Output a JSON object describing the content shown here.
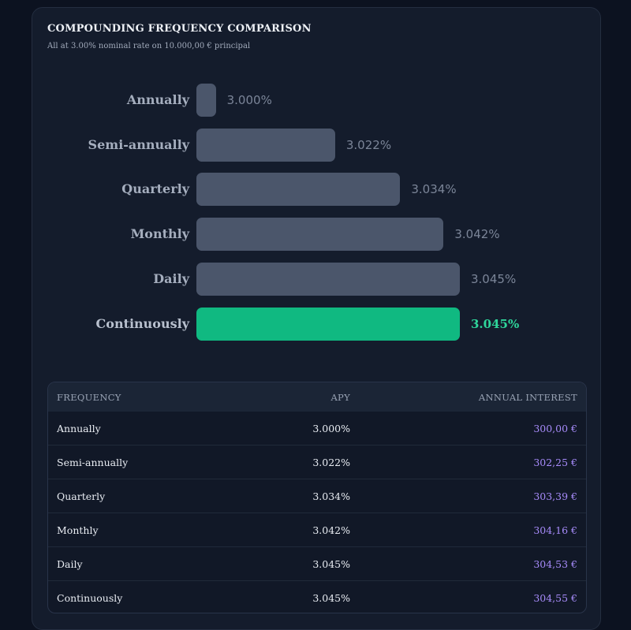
{
  "header": {
    "title": "COMPOUNDING FREQUENCY COMPARISON",
    "subtitle": "All at 3.00% nominal rate on 10.000,00 € principal"
  },
  "chart_data": {
    "type": "bar",
    "orientation": "horizontal",
    "title": "COMPOUNDING FREQUENCY COMPARISON",
    "subtitle": "All at 3.00% nominal rate on 10.000,00 € principal",
    "categories": [
      "Annually",
      "Semi-annually",
      "Quarterly",
      "Monthly",
      "Daily",
      "Continuously"
    ],
    "values": [
      3.0,
      3.022,
      3.034,
      3.042,
      3.045,
      3.045
    ],
    "value_labels": [
      "3.000%",
      "3.022%",
      "3.034%",
      "3.042%",
      "3.045%",
      "3.045%"
    ],
    "highlight_index": 5,
    "colors": {
      "bar": "#4b566b",
      "highlight": "#10b981"
    },
    "grid": false,
    "legend": "none"
  },
  "table": {
    "headers": {
      "frequency": "FREQUENCY",
      "apy": "APY",
      "interest": "ANNUAL INTEREST"
    },
    "rows": [
      {
        "frequency": "Annually",
        "apy": "3.000%",
        "interest": "300,00 €"
      },
      {
        "frequency": "Semi-annually",
        "apy": "3.022%",
        "interest": "302,25 €"
      },
      {
        "frequency": "Quarterly",
        "apy": "3.034%",
        "interest": "303,39 €"
      },
      {
        "frequency": "Monthly",
        "apy": "3.042%",
        "interest": "304,16 €"
      },
      {
        "frequency": "Daily",
        "apy": "3.045%",
        "interest": "304,53 €"
      },
      {
        "frequency": "Continuously",
        "apy": "3.045%",
        "interest": "304,55 €"
      }
    ]
  }
}
